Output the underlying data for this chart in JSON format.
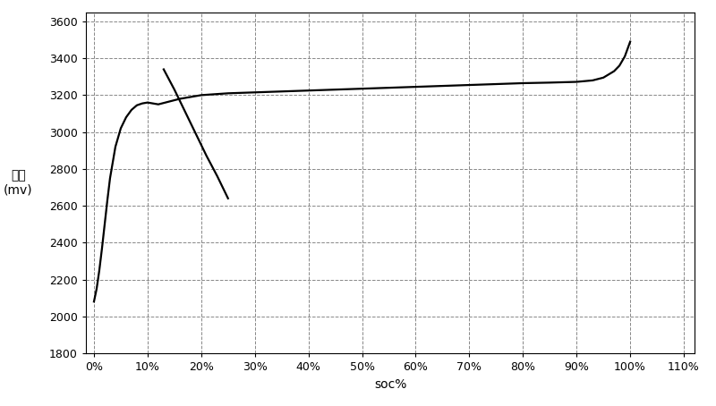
{
  "title": "",
  "xlabel": "soc%",
  "ylabel_line1": "电压",
  "ylabel_line2": "(mv)",
  "xlim": [
    -0.015,
    1.12
  ],
  "ylim": [
    1800,
    3650
  ],
  "yticks": [
    1800,
    2000,
    2200,
    2400,
    2600,
    2800,
    3000,
    3200,
    3400,
    3600
  ],
  "xticks": [
    0.0,
    0.1,
    0.2,
    0.3,
    0.4,
    0.5,
    0.6,
    0.7,
    0.8,
    0.9,
    1.0,
    1.1
  ],
  "xtick_labels": [
    "0%",
    "10%",
    "20%",
    "30%",
    "40%",
    "50%",
    "60%",
    "70%",
    "80%",
    "90%",
    "100%",
    "110%"
  ],
  "ocv_curve_x": [
    0.0,
    0.005,
    0.01,
    0.015,
    0.02,
    0.025,
    0.03,
    0.04,
    0.05,
    0.06,
    0.07,
    0.08,
    0.09,
    0.1,
    0.11,
    0.12,
    0.14,
    0.16,
    0.18,
    0.2,
    0.25,
    0.3,
    0.35,
    0.4,
    0.45,
    0.5,
    0.55,
    0.6,
    0.65,
    0.7,
    0.75,
    0.8,
    0.85,
    0.9,
    0.93,
    0.95,
    0.97,
    0.98,
    0.99,
    1.0
  ],
  "ocv_curve_y": [
    2080,
    2150,
    2250,
    2370,
    2500,
    2630,
    2750,
    2920,
    3020,
    3080,
    3120,
    3145,
    3155,
    3160,
    3155,
    3150,
    3165,
    3180,
    3190,
    3200,
    3210,
    3215,
    3220,
    3225,
    3230,
    3235,
    3240,
    3245,
    3250,
    3255,
    3260,
    3265,
    3268,
    3272,
    3280,
    3295,
    3330,
    3360,
    3410,
    3490
  ],
  "tangent_line_x": [
    0.13,
    0.15,
    0.17,
    0.19,
    0.21,
    0.23,
    0.25
  ],
  "tangent_line_y": [
    3340,
    3230,
    3110,
    2990,
    2870,
    2760,
    2640
  ],
  "line_color": "#000000",
  "background_color": "#ffffff",
  "grid_color": "#888888",
  "grid_linestyle": "--",
  "figsize": [
    8.0,
    4.54
  ],
  "dpi": 100,
  "tick_fontsize": 9,
  "label_fontsize": 10
}
